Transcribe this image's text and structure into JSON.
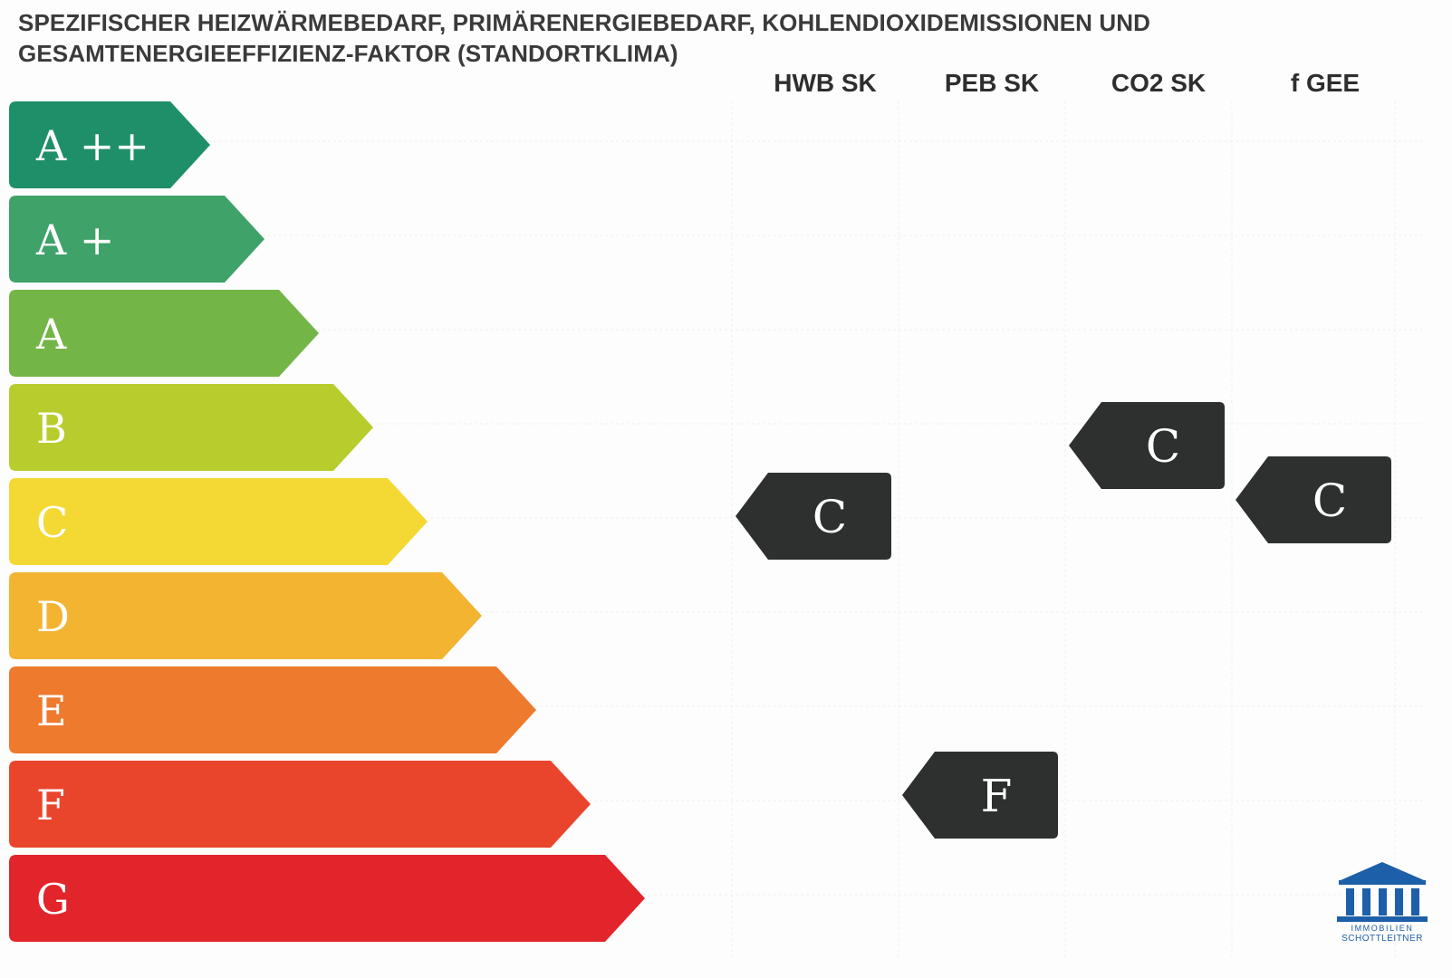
{
  "title": {
    "line1": "SPEZIFISCHER HEIZWÄRMEBEDARF, PRIMÄRENERGIEBEDARF, KOHLENDIOXIDEMISSIONEN UND",
    "line2": "GESAMTENERGIEEFFIZIENZ-FAKTOR (STANDORTKLIMA)"
  },
  "columns": [
    "HWB SK",
    "PEB SK",
    "CO2 SK",
    "f GEE"
  ],
  "classes": [
    {
      "label": "A ++",
      "color": "#1f8f6a"
    },
    {
      "label": "A +",
      "color": "#3ea269"
    },
    {
      "label": "A",
      "color": "#73b547"
    },
    {
      "label": "B",
      "color": "#b8cc2d"
    },
    {
      "label": "C",
      "color": "#f4d934"
    },
    {
      "label": "D",
      "color": "#f2b431"
    },
    {
      "label": "E",
      "color": "#ee7a2e"
    },
    {
      "label": "F",
      "color": "#e9452d"
    },
    {
      "label": "G",
      "color": "#e2242b"
    }
  ],
  "ratings": [
    {
      "column": "HWB SK",
      "value": "C"
    },
    {
      "column": "PEB SK",
      "value": "F"
    },
    {
      "column": "CO2 SK",
      "value": "C"
    },
    {
      "column": "f GEE",
      "value": "C"
    }
  ],
  "marker_color": "#2d302e",
  "logo": {
    "line1": "IMMOBILIEN",
    "line2": "SCHOTTLEITNER",
    "color": "#1d5fa8"
  }
}
